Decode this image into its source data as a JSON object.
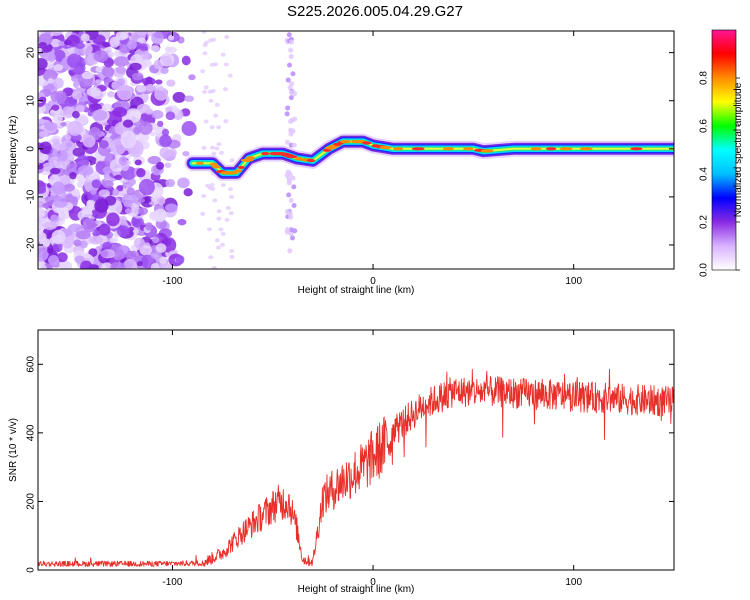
{
  "title": "S225.2026.005.04.29.G27",
  "chart_data": [
    {
      "type": "heatmap",
      "xlabel": "Height of straight line (km)",
      "ylabel": "Frequency (Hz)",
      "xlim": [
        -167,
        150
      ],
      "ylim": [
        -25,
        24.5
      ],
      "x_ticks": [
        -100,
        0,
        100
      ],
      "y_ticks": [
        -20,
        -10,
        0,
        10,
        20
      ],
      "colorbar": {
        "label": "Normalized spectral amplitude",
        "range": [
          0,
          1
        ],
        "ticks": [
          0.0,
          0.2,
          0.4,
          0.6,
          0.8
        ],
        "colors": [
          "#ffffff",
          "#d9b3ff",
          "#8a2be2",
          "#0000ff",
          "#00bfff",
          "#00ffff",
          "#00ff00",
          "#ffff00",
          "#ff8c00",
          "#ff0000",
          "#ff1493"
        ]
      },
      "noise_region_km": [
        -167,
        -88
      ],
      "signal_track": [
        {
          "x": -90,
          "y": -3
        },
        {
          "x": -80,
          "y": -3
        },
        {
          "x": -75,
          "y": -5
        },
        {
          "x": -68,
          "y": -5
        },
        {
          "x": -62,
          "y": -2
        },
        {
          "x": -55,
          "y": -1
        },
        {
          "x": -45,
          "y": -1
        },
        {
          "x": -38,
          "y": -2
        },
        {
          "x": -30,
          "y": -2.5
        },
        {
          "x": -22,
          "y": 0
        },
        {
          "x": -15,
          "y": 1.5
        },
        {
          "x": -5,
          "y": 1.5
        },
        {
          "x": 0,
          "y": 0.7
        },
        {
          "x": 10,
          "y": 0
        },
        {
          "x": 30,
          "y": 0
        },
        {
          "x": 50,
          "y": 0
        },
        {
          "x": 55,
          "y": -0.5
        },
        {
          "x": 70,
          "y": 0
        },
        {
          "x": 100,
          "y": 0
        },
        {
          "x": 150,
          "y": 0
        }
      ]
    },
    {
      "type": "line",
      "xlabel": "Height of straight line (km)",
      "ylabel": "SNR (10 * v/v)",
      "xlim": [
        -167,
        150
      ],
      "ylim": [
        0,
        700
      ],
      "x_ticks": [
        -100,
        0,
        100
      ],
      "y_ticks": [
        0,
        200,
        400,
        600
      ],
      "line_color": "#e8302a",
      "trend": [
        {
          "x": -167,
          "y": 18
        },
        {
          "x": -140,
          "y": 18
        },
        {
          "x": -110,
          "y": 18
        },
        {
          "x": -85,
          "y": 20
        },
        {
          "x": -75,
          "y": 50
        },
        {
          "x": -65,
          "y": 110
        },
        {
          "x": -55,
          "y": 160
        },
        {
          "x": -48,
          "y": 195
        },
        {
          "x": -42,
          "y": 200
        },
        {
          "x": -38,
          "y": 120
        },
        {
          "x": -35,
          "y": 30
        },
        {
          "x": -30,
          "y": 25
        },
        {
          "x": -25,
          "y": 210
        },
        {
          "x": -15,
          "y": 260
        },
        {
          "x": -5,
          "y": 300
        },
        {
          "x": 5,
          "y": 360
        },
        {
          "x": 15,
          "y": 430
        },
        {
          "x": 25,
          "y": 480
        },
        {
          "x": 40,
          "y": 520
        },
        {
          "x": 60,
          "y": 520
        },
        {
          "x": 90,
          "y": 510
        },
        {
          "x": 120,
          "y": 500
        },
        {
          "x": 150,
          "y": 490
        }
      ]
    }
  ]
}
